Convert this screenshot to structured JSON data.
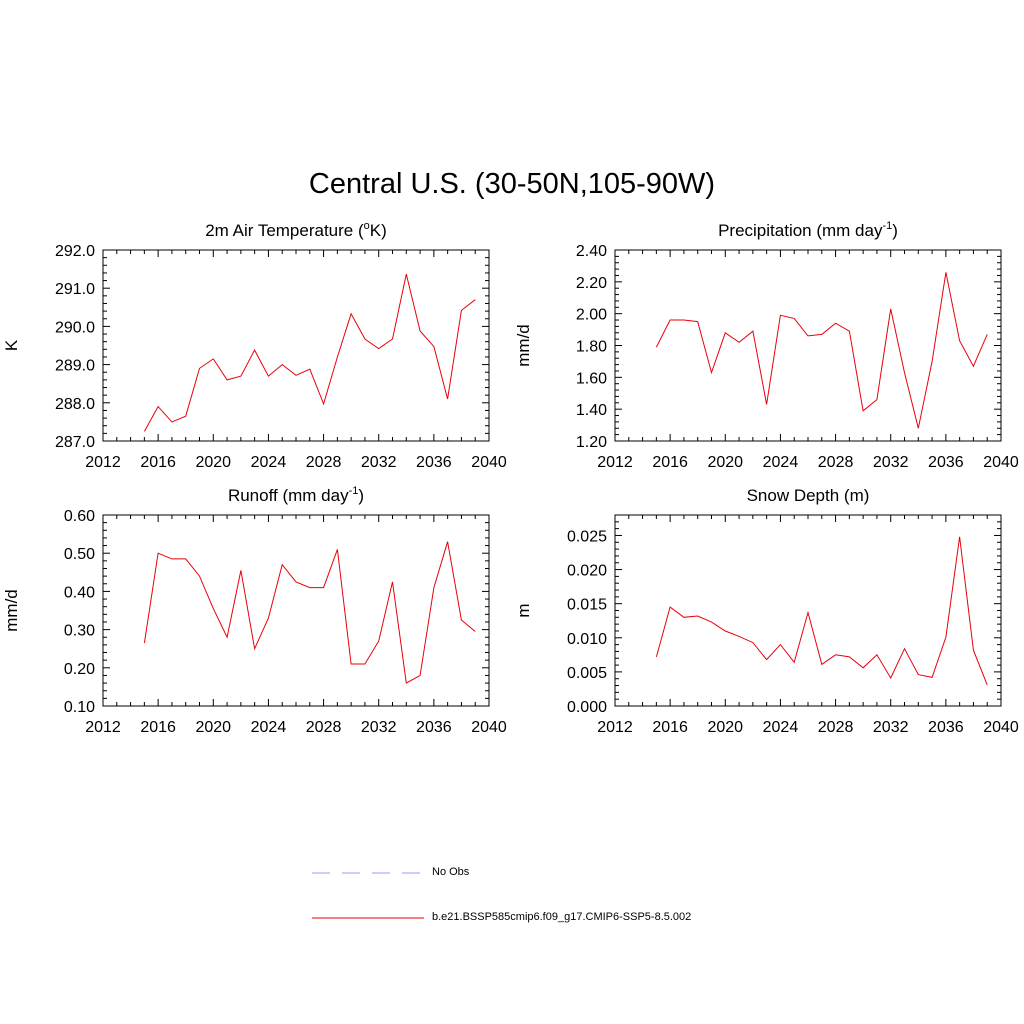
{
  "title": "Central U.S. (30-50N,105-90W)",
  "colors": {
    "model_line": "#e8000b",
    "obs_line": "#9999ff",
    "axis": "#000000"
  },
  "legend": [
    {
      "label": "No Obs",
      "style": "dashed",
      "color": "#9999ff"
    },
    {
      "label": "b.e21.BSSP585cmip6.f09_g17.CMIP6-SSP5-8.5.002",
      "style": "solid",
      "color": "#e8000b"
    }
  ],
  "chart_data": [
    {
      "type": "line",
      "title_main": "2m Air Temperature (",
      "title_sup": "o",
      "title_end": "K)",
      "ylabel": "K",
      "xlim": [
        2012,
        2040
      ],
      "x_ticks": [
        "2012",
        "2016",
        "2020",
        "2024",
        "2028",
        "2032",
        "2036",
        "2040"
      ],
      "ylim": [
        287.0,
        292.0
      ],
      "y_ticks": [
        "287.0",
        "288.0",
        "289.0",
        "290.0",
        "291.0",
        "292.0"
      ],
      "x": [
        2015,
        2016,
        2017,
        2018,
        2019,
        2020,
        2021,
        2022,
        2023,
        2024,
        2025,
        2026,
        2027,
        2028,
        2029,
        2030,
        2031,
        2032,
        2033,
        2034,
        2035,
        2036,
        2037,
        2038,
        2039
      ],
      "series": [
        {
          "values": [
            287.25,
            287.9,
            287.5,
            287.65,
            288.9,
            289.15,
            288.6,
            288.7,
            289.38,
            288.7,
            289.0,
            288.72,
            288.88,
            287.97,
            289.2,
            290.33,
            289.67,
            289.42,
            289.67,
            291.37,
            289.88,
            289.47,
            288.1,
            290.42,
            290.7
          ]
        }
      ]
    },
    {
      "type": "line",
      "title_main": "Precipitation (mm day",
      "title_sup": "-1",
      "title_end": ")",
      "ylabel": "mm/d",
      "xlim": [
        2012,
        2040
      ],
      "x_ticks": [
        "2012",
        "2016",
        "2020",
        "2024",
        "2028",
        "2032",
        "2036",
        "2040"
      ],
      "ylim": [
        1.2,
        2.4
      ],
      "y_ticks": [
        "1.20",
        "1.40",
        "1.60",
        "1.80",
        "2.00",
        "2.20",
        "2.40"
      ],
      "x": [
        2015,
        2016,
        2017,
        2018,
        2019,
        2020,
        2021,
        2022,
        2023,
        2024,
        2025,
        2026,
        2027,
        2028,
        2029,
        2030,
        2031,
        2032,
        2033,
        2034,
        2035,
        2036,
        2037,
        2038,
        2039
      ],
      "series": [
        {
          "values": [
            1.79,
            1.96,
            1.96,
            1.95,
            1.63,
            1.88,
            1.82,
            1.89,
            1.43,
            1.99,
            1.97,
            1.86,
            1.87,
            1.94,
            1.89,
            1.39,
            1.46,
            2.03,
            1.63,
            1.28,
            1.7,
            2.26,
            1.83,
            1.67,
            1.87
          ]
        }
      ]
    },
    {
      "type": "line",
      "title_main": "Runoff (mm day",
      "title_sup": "-1",
      "title_end": ")",
      "ylabel": "mm/d",
      "xlim": [
        2012,
        2040
      ],
      "x_ticks": [
        "2012",
        "2016",
        "2020",
        "2024",
        "2028",
        "2032",
        "2036",
        "2040"
      ],
      "ylim": [
        0.1,
        0.6
      ],
      "y_ticks": [
        "0.10",
        "0.20",
        "0.30",
        "0.40",
        "0.50",
        "0.60"
      ],
      "x": [
        2015,
        2016,
        2017,
        2018,
        2019,
        2020,
        2021,
        2022,
        2023,
        2024,
        2025,
        2026,
        2027,
        2028,
        2029,
        2030,
        2031,
        2032,
        2033,
        2034,
        2035,
        2036,
        2037,
        2038,
        2039
      ],
      "series": [
        {
          "values": [
            0.265,
            0.5,
            0.485,
            0.485,
            0.44,
            0.355,
            0.28,
            0.455,
            0.25,
            0.33,
            0.47,
            0.425,
            0.41,
            0.41,
            0.51,
            0.21,
            0.21,
            0.27,
            0.425,
            0.16,
            0.18,
            0.41,
            0.53,
            0.325,
            0.295
          ]
        }
      ]
    },
    {
      "type": "line",
      "title_main": "Snow Depth (m)",
      "title_sup": "",
      "title_end": "",
      "ylabel": "m",
      "xlim": [
        2012,
        2040
      ],
      "x_ticks": [
        "2012",
        "2016",
        "2020",
        "2024",
        "2028",
        "2032",
        "2036",
        "2040"
      ],
      "ylim": [
        0.0,
        0.028
      ],
      "y_ticks": [
        "0.000",
        "0.005",
        "0.010",
        "0.015",
        "0.020",
        "0.025"
      ],
      "x": [
        2015,
        2016,
        2017,
        2018,
        2019,
        2020,
        2021,
        2022,
        2023,
        2024,
        2025,
        2026,
        2027,
        2028,
        2029,
        2030,
        2031,
        2032,
        2033,
        2034,
        2035,
        2036,
        2037,
        2038,
        2039
      ],
      "series": [
        {
          "values": [
            0.0072,
            0.0145,
            0.013,
            0.0132,
            0.0123,
            0.011,
            0.0102,
            0.0093,
            0.0068,
            0.009,
            0.0064,
            0.0137,
            0.0061,
            0.0075,
            0.0072,
            0.0056,
            0.0075,
            0.0041,
            0.0084,
            0.0046,
            0.0042,
            0.0101,
            0.0248,
            0.0082,
            0.0031
          ]
        }
      ]
    }
  ]
}
